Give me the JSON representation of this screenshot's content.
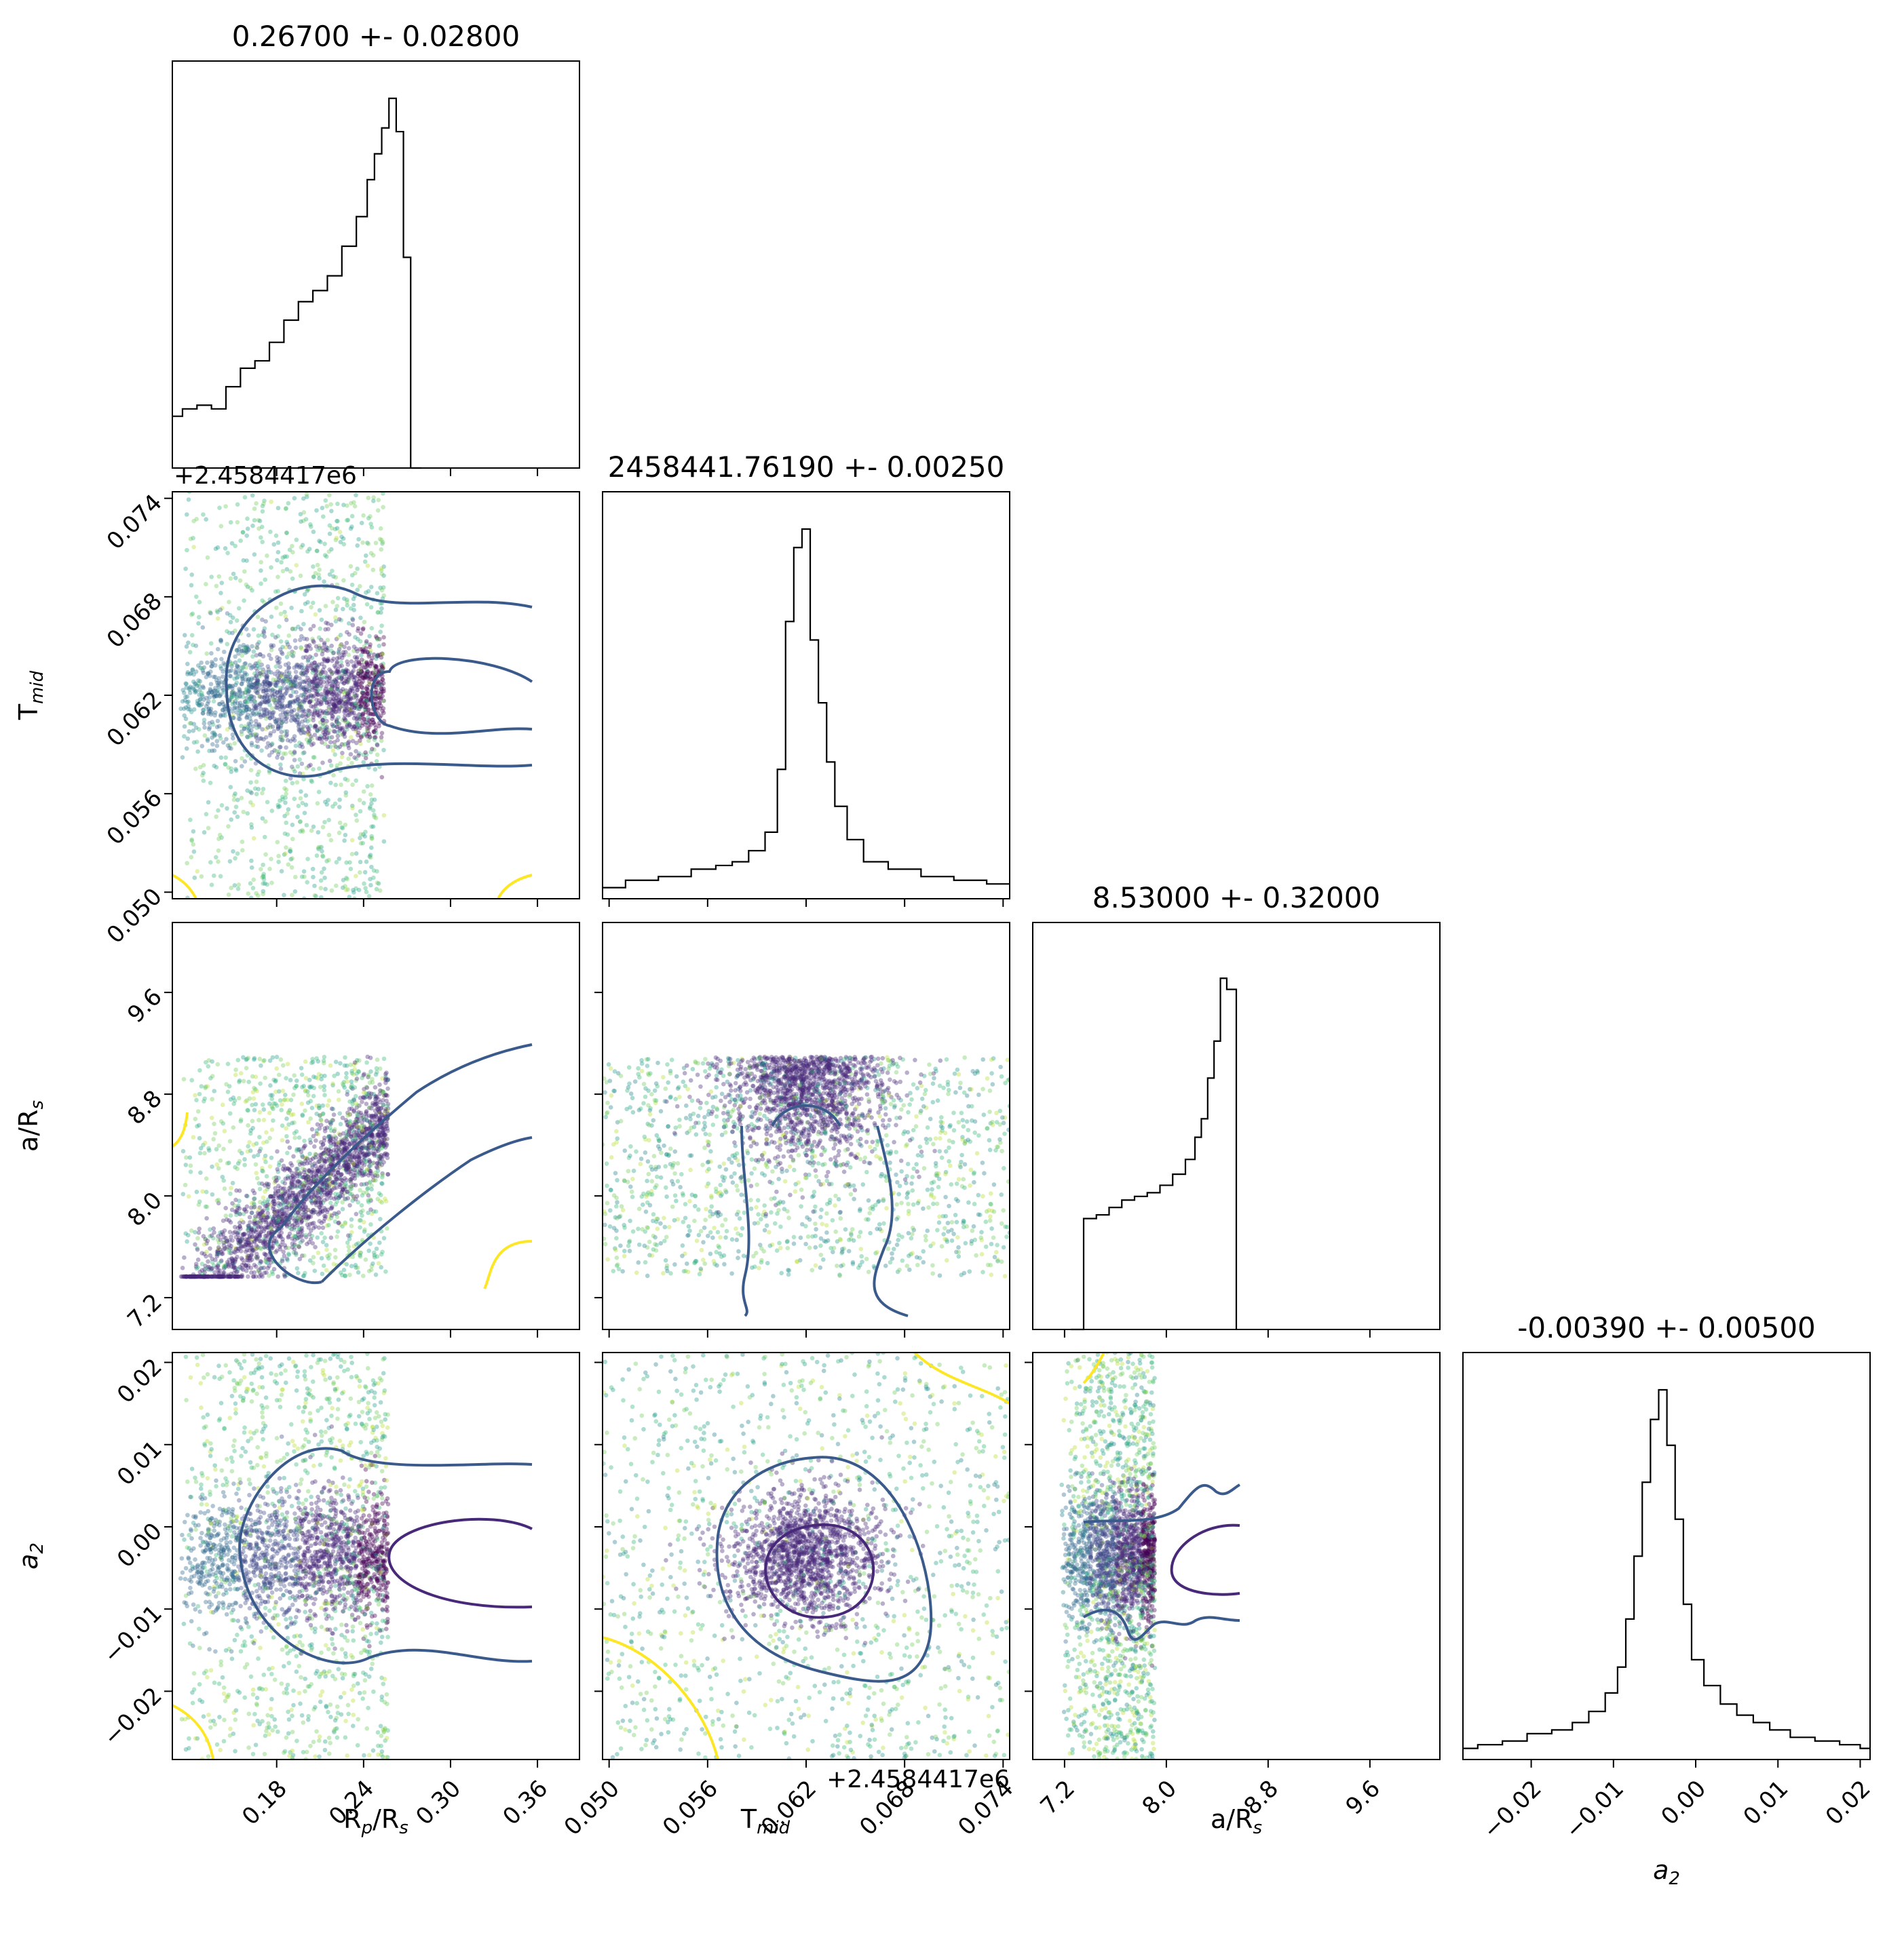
{
  "chart_data": {
    "type": "corner-plot",
    "parameters": [
      {
        "key": "rp",
        "label": "R",
        "sub": "p",
        "suffix": "/R",
        "suffix_sub": "s",
        "title": "0.26700 +- 0.02800",
        "range": [
          0.108,
          0.389
        ],
        "ticks": [
          "0.18",
          "0.24",
          "0.30",
          "0.36"
        ],
        "tick_values": [
          0.18,
          0.24,
          0.3,
          0.36
        ]
      },
      {
        "key": "tmid",
        "label": "T",
        "sub": "mid",
        "suffix": "",
        "suffix_sub": "",
        "title": "2458441.76190 +- 0.00250",
        "range": [
          0.0496,
          0.0744
        ],
        "ticks": [
          "0.050",
          "0.056",
          "0.062",
          "0.068",
          "0.074"
        ],
        "tick_values": [
          0.05,
          0.056,
          0.062,
          0.068,
          0.074
        ],
        "offset": "+2.4584417e6"
      },
      {
        "key": "ars",
        "label": "a/R",
        "sub": "s",
        "suffix": "",
        "suffix_sub": "",
        "title": "8.53000 +- 0.32000",
        "range": [
          6.95,
          10.15
        ],
        "ticks": [
          "7.2",
          "8.0",
          "8.8",
          "9.6"
        ],
        "tick_values": [
          7.2,
          8.0,
          8.8,
          9.6
        ]
      },
      {
        "key": "a2",
        "label": "a",
        "sub": "2",
        "suffix": "",
        "suffix_sub": "",
        "title": "-0.00390 +- 0.00500",
        "range": [
          -0.0283,
          0.0212
        ],
        "ticks": [
          "−0.02",
          "−0.01",
          "0.00",
          "0.01",
          "0.02"
        ],
        "tick_values": [
          -0.02,
          -0.01,
          0.0,
          0.01,
          0.02
        ]
      }
    ],
    "histograms": {
      "rp": {
        "centers": [
          0.11,
          0.12,
          0.13,
          0.14,
          0.15,
          0.16,
          0.17,
          0.18,
          0.19,
          0.2,
          0.21,
          0.22,
          0.23,
          0.24,
          0.245,
          0.25,
          0.255,
          0.26,
          0.265,
          0.27,
          0.275
        ],
        "heights": [
          0.14,
          0.16,
          0.17,
          0.16,
          0.22,
          0.27,
          0.29,
          0.34,
          0.4,
          0.45,
          0.48,
          0.52,
          0.6,
          0.68,
          0.78,
          0.85,
          0.92,
          1.0,
          0.91,
          0.57,
          0.0
        ]
      },
      "tmid": {
        "centers": [
          0.05,
          0.052,
          0.054,
          0.056,
          0.057,
          0.058,
          0.059,
          0.06,
          0.0605,
          0.061,
          0.0615,
          0.062,
          0.0625,
          0.063,
          0.0635,
          0.064,
          0.065,
          0.066,
          0.068,
          0.07,
          0.072,
          0.074
        ],
        "heights": [
          0.03,
          0.05,
          0.06,
          0.08,
          0.09,
          0.1,
          0.13,
          0.18,
          0.35,
          0.75,
          0.95,
          1.0,
          0.7,
          0.53,
          0.37,
          0.25,
          0.16,
          0.1,
          0.08,
          0.06,
          0.05,
          0.04
        ],
        "baseline_min": 0.02
      },
      "ars": {
        "centers": [
          7.3,
          7.4,
          7.5,
          7.6,
          7.7,
          7.8,
          7.9,
          8.0,
          8.1,
          8.2,
          8.25,
          8.3,
          8.35,
          8.4,
          8.45,
          8.5
        ],
        "heights": [
          0.0,
          0.3,
          0.31,
          0.33,
          0.35,
          0.36,
          0.37,
          0.39,
          0.42,
          0.46,
          0.52,
          0.57,
          0.68,
          0.78,
          0.95,
          0.92
        ],
        "end": 8.55
      },
      "a2": {
        "centers": [
          -0.028,
          -0.025,
          -0.022,
          -0.019,
          -0.016,
          -0.014,
          -0.012,
          -0.01,
          -0.009,
          -0.008,
          -0.007,
          -0.006,
          -0.005,
          -0.004,
          -0.003,
          -0.002,
          -0.001,
          0.0,
          0.002,
          0.004,
          0.006,
          0.008,
          0.01,
          0.013,
          0.016,
          0.019,
          0.021
        ],
        "heights": [
          0.03,
          0.04,
          0.05,
          0.07,
          0.08,
          0.1,
          0.13,
          0.18,
          0.25,
          0.38,
          0.55,
          0.75,
          0.92,
          1.0,
          0.85,
          0.65,
          0.42,
          0.27,
          0.2,
          0.15,
          0.12,
          0.1,
          0.08,
          0.06,
          0.05,
          0.04,
          0.03
        ]
      }
    },
    "points_color_scale": "viridis (yellow = low density, purple = high density)"
  }
}
